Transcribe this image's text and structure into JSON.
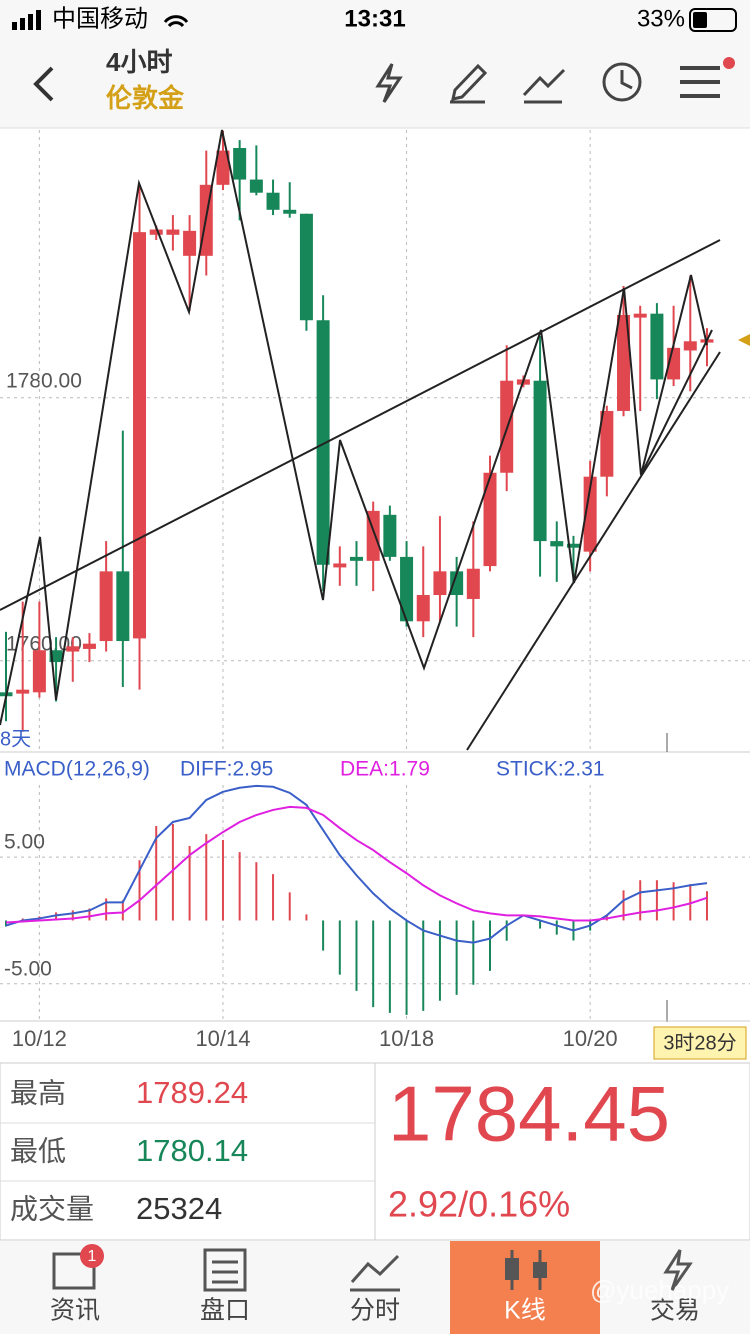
{
  "status_bar": {
    "carrier": "中国移动",
    "time": "13:31",
    "battery": "33%"
  },
  "header": {
    "period": "4小时",
    "instrument": "伦敦金"
  },
  "chart_data": [
    {
      "type": "candlestick",
      "range_label": "8天",
      "countdown": "3时28分",
      "up_color": "#e0474f",
      "down_color": "#17875a",
      "categories": [
        null,
        null,
        "10/12",
        null,
        null,
        null,
        null,
        null,
        null,
        null,
        null,
        null,
        null,
        "10/14",
        null,
        null,
        null,
        null,
        null,
        null,
        null,
        null,
        null,
        null,
        "10/18",
        null,
        null,
        null,
        null,
        null,
        null,
        null,
        null,
        null,
        null,
        "10/20",
        null,
        null,
        null,
        null,
        null,
        null,
        null
      ],
      "ohlc": [
        [
          1757.6,
          1762.2,
          1755.4,
          1757.3
        ],
        [
          1757.5,
          1764.5,
          1754.6,
          1757.8
        ],
        [
          1757.6,
          1764.5,
          1757.2,
          1760.8
        ],
        [
          1760.8,
          1761.8,
          1756.9,
          1759.9
        ],
        [
          1760.7,
          1761.8,
          1758.4,
          1761.1
        ],
        [
          1760.9,
          1762.1,
          1759.9,
          1761.3
        ],
        [
          1761.5,
          1769.1,
          1760.7,
          1766.8
        ],
        [
          1766.8,
          1777.5,
          1758.0,
          1761.5
        ],
        [
          1761.7,
          1796.2,
          1757.8,
          1792.6
        ],
        [
          1792.4,
          1793.1,
          1792.0,
          1792.8
        ],
        [
          1792.4,
          1793.9,
          1791.2,
          1792.8
        ],
        [
          1790.8,
          1793.9,
          1786.6,
          1792.7
        ],
        [
          1790.8,
          1798.8,
          1789.3,
          1796.2
        ],
        [
          1796.2,
          1800.3,
          1795.8,
          1798.8
        ],
        [
          1799.0,
          1799.6,
          1793.5,
          1796.6
        ],
        [
          1796.6,
          1799.2,
          1795.4,
          1795.6
        ],
        [
          1795.6,
          1796.6,
          1793.9,
          1794.3
        ],
        [
          1794.3,
          1796.4,
          1793.7,
          1794.0
        ],
        [
          1794.0,
          1794.0,
          1785.1,
          1785.9
        ],
        [
          1785.9,
          1787.8,
          1765.3,
          1767.3
        ],
        [
          1767.1,
          1768.7,
          1765.7,
          1767.4
        ],
        [
          1767.9,
          1769.1,
          1765.7,
          1767.6
        ],
        [
          1767.6,
          1772.1,
          1765.3,
          1771.4
        ],
        [
          1771.1,
          1771.8,
          1767.6,
          1767.9
        ],
        [
          1767.9,
          1769.1,
          1762.6,
          1763.0
        ],
        [
          1763.0,
          1768.7,
          1761.8,
          1765.0
        ],
        [
          1765.0,
          1771.0,
          1763.0,
          1766.8
        ],
        [
          1766.8,
          1767.9,
          1762.6,
          1765.0
        ],
        [
          1764.7,
          1770.6,
          1761.8,
          1767.0
        ],
        [
          1767.2,
          1775.6,
          1766.8,
          1774.3
        ],
        [
          1774.3,
          1784.0,
          1772.9,
          1781.3
        ],
        [
          1781.0,
          1781.7,
          1780.8,
          1781.4
        ],
        [
          1781.3,
          1784.7,
          1766.4,
          1769.1
        ],
        [
          1769.1,
          1770.6,
          1766.0,
          1768.7
        ],
        [
          1768.9,
          1769.5,
          1766.0,
          1768.6
        ],
        [
          1768.3,
          1775.2,
          1766.8,
          1774.0
        ],
        [
          1774.0,
          1779.4,
          1772.5,
          1779.0
        ],
        [
          1779.0,
          1788.5,
          1778.6,
          1786.3
        ],
        [
          1786.1,
          1787.0,
          1779.0,
          1786.4
        ],
        [
          1786.4,
          1787.2,
          1779.9,
          1781.4
        ],
        [
          1781.4,
          1787.0,
          1780.9,
          1783.8
        ],
        [
          1783.6,
          1789.3,
          1780.5,
          1784.3
        ],
        [
          1784.2,
          1785.3,
          1782.4,
          1784.45
        ]
      ],
      "ylim": [
        1753.06,
        1800.37
      ],
      "yticks": [
        {
          "value": 1760,
          "label": "1760.00"
        },
        {
          "value": 1780,
          "label": "1780.00"
        }
      ],
      "grid": true
    },
    {
      "type": "macd",
      "title": "MACD(12,26,9)",
      "ylim": [
        -7.94,
        10.7
      ],
      "yticks": [
        {
          "value": 5,
          "label": "5.00"
        },
        {
          "value": -5,
          "label": "-5.00"
        }
      ],
      "grid": true,
      "series": [
        {
          "name": "DIFF",
          "legend_label": "DIFF:2.95",
          "color": "#3a5fc8",
          "values": [
            -0.4,
            0,
            0.16,
            0.4,
            0.56,
            0.79,
            1.43,
            1.43,
            3.97,
            6.51,
            7.78,
            8.1,
            9.52,
            10.16,
            10.48,
            10.63,
            10.56,
            10.08,
            9.13,
            7.14,
            5.16,
            3.57,
            2.14,
            0.95,
            0,
            -0.79,
            -1.19,
            -1.59,
            -1.75,
            -1.43,
            -0.4,
            0.4,
            0,
            -0.4,
            -0.79,
            -0.4,
            0.4,
            1.59,
            2.22,
            2.38,
            2.54,
            2.78,
            2.95
          ]
        },
        {
          "name": "DEA",
          "legend_label": "DEA:1.79",
          "color": "#e020e0",
          "values": [
            -0.16,
            -0.08,
            0,
            0.08,
            0.16,
            0.32,
            0.56,
            0.63,
            1.59,
            2.78,
            3.97,
            5.16,
            6.11,
            6.98,
            7.78,
            8.33,
            8.73,
            8.97,
            8.89,
            8.33,
            7.3,
            6.35,
            5.56,
            4.6,
            3.73,
            2.78,
            1.98,
            1.35,
            0.79,
            0.56,
            0.4,
            0.4,
            0.32,
            0.16,
            0,
            0,
            0.16,
            0.4,
            0.63,
            0.79,
            1.03,
            1.35,
            1.79
          ]
        },
        {
          "name": "STICK",
          "legend_label": "STICK:2.31",
          "color": "#3a5fc8",
          "up_color": "#e0474f",
          "down_color": "#17875a",
          "values": [
            -0.48,
            0.16,
            0.32,
            0.64,
            0.8,
            0.94,
            1.74,
            1.6,
            4.76,
            7.46,
            7.62,
            5.88,
            6.82,
            6.36,
            5.4,
            4.6,
            3.66,
            2.22,
            0.48,
            -2.38,
            -4.28,
            -5.56,
            -6.84,
            -7.3,
            -7.46,
            -7.14,
            -6.34,
            -5.88,
            -5.08,
            -3.98,
            -1.6,
            0,
            -0.64,
            -1.12,
            -1.58,
            -0.8,
            0.48,
            2.38,
            3.18,
            3.18,
            3.02,
            2.86,
            2.31
          ]
        }
      ]
    }
  ],
  "quote": {
    "high_label": "最高",
    "high": 1789.24,
    "low_label": "最低",
    "low": 1780.14,
    "volume_label": "成交量",
    "volume": 25324,
    "last": 1784.45,
    "change": "2.92/0.16%"
  },
  "tabs": {
    "items": [
      "资讯",
      "盘口",
      "分时",
      "K线",
      "交易"
    ],
    "badge": 1
  },
  "watermark": "@yuehappy"
}
